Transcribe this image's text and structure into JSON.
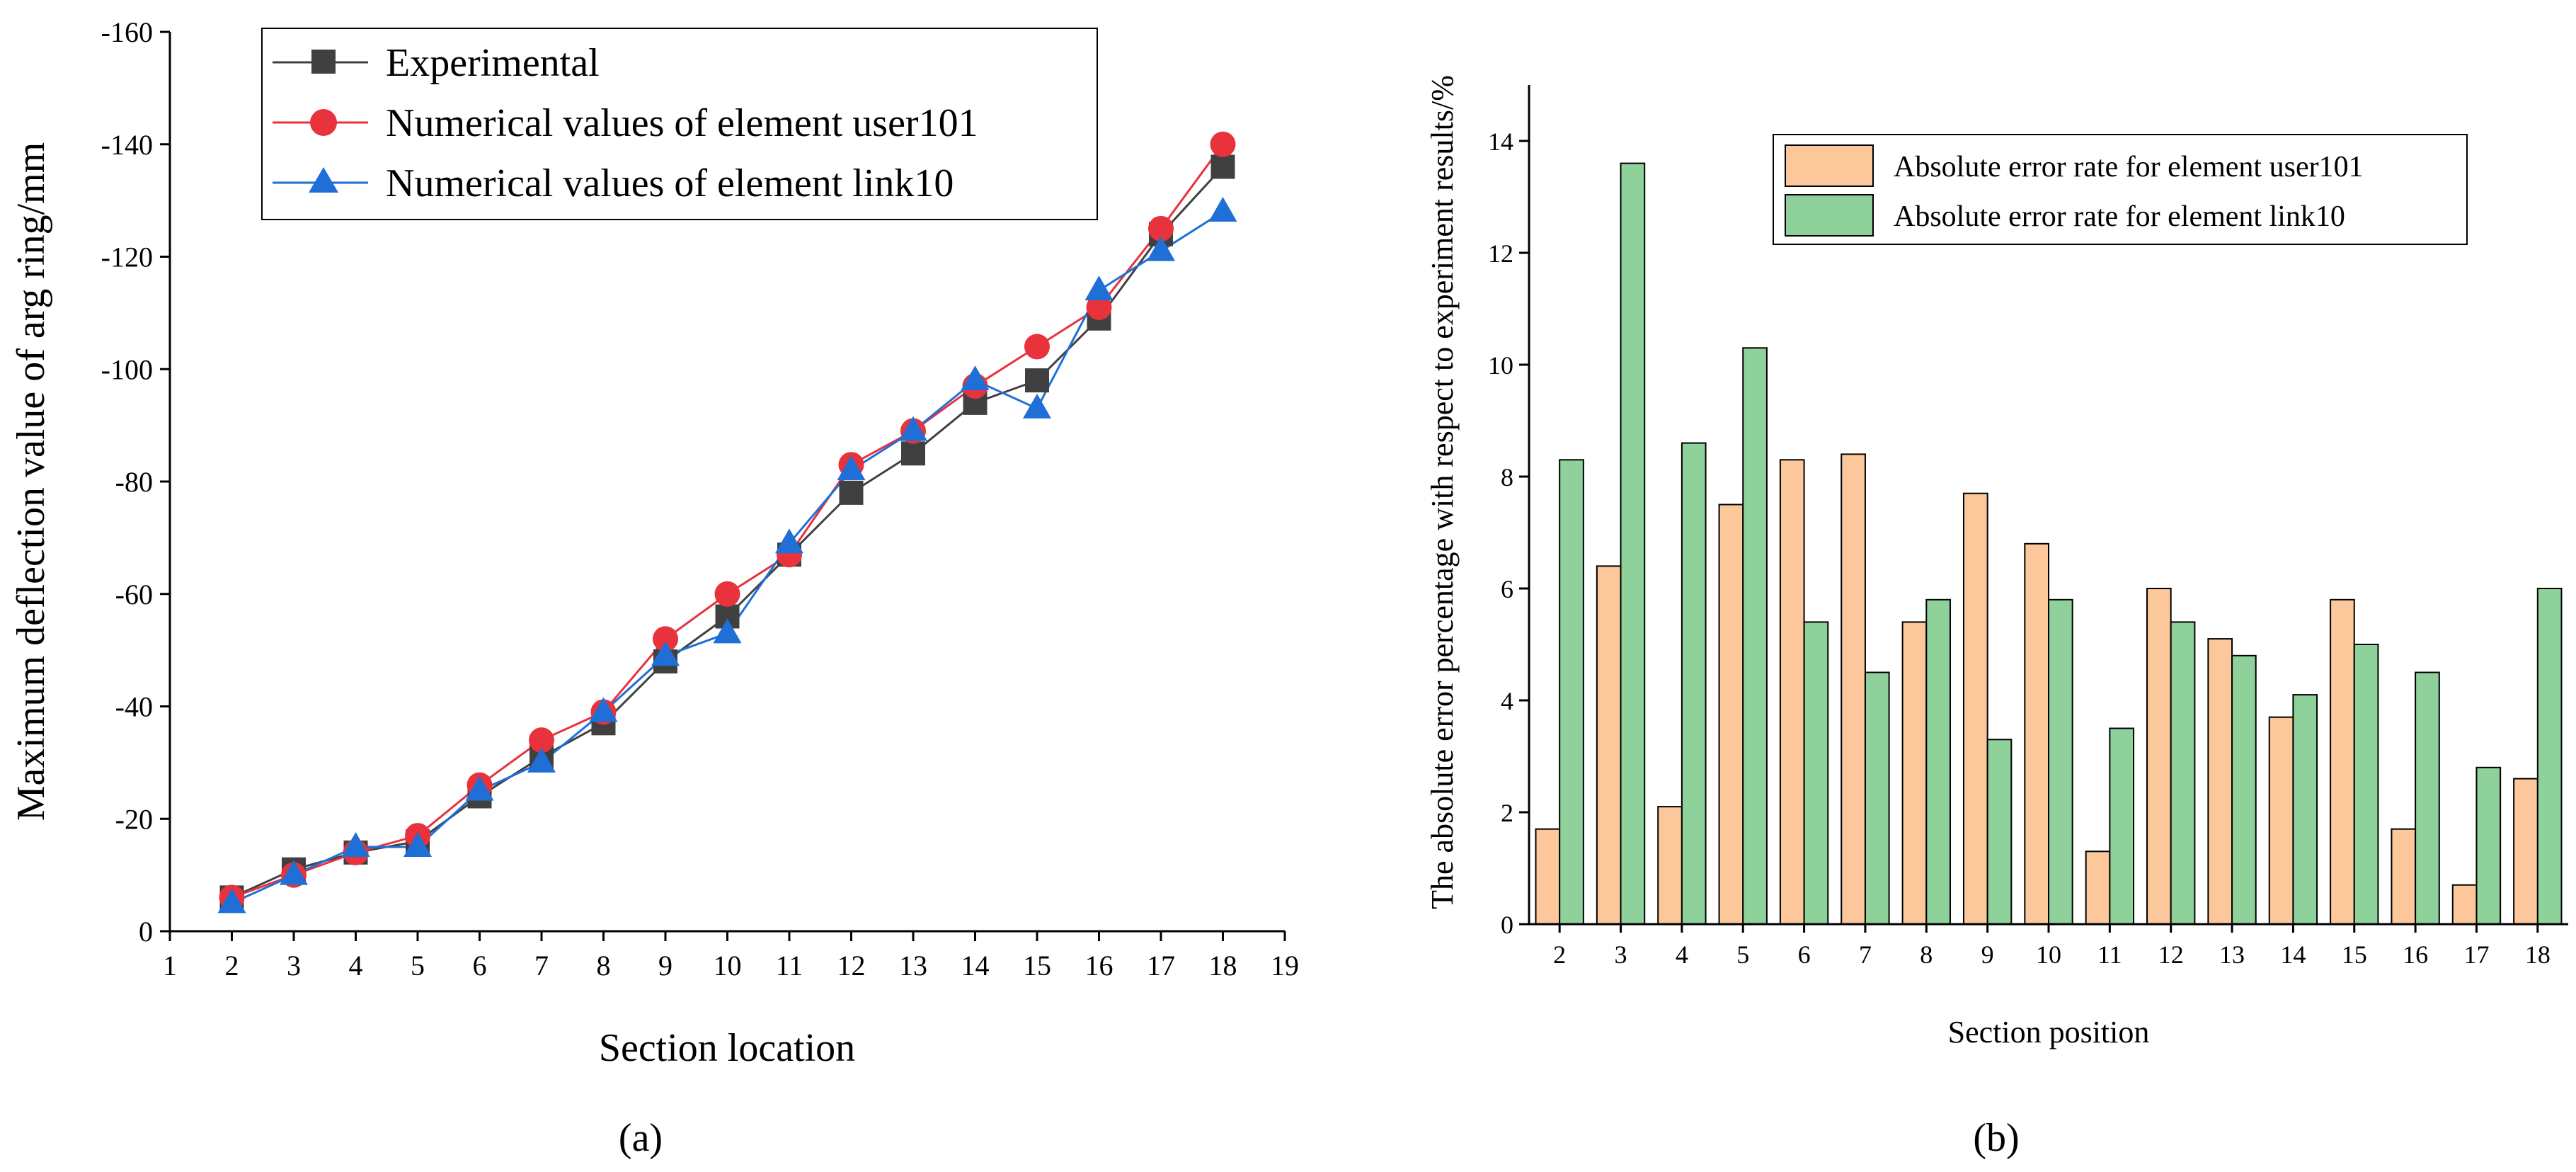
{
  "chart_data": [
    {
      "type": "line",
      "panel_label": "(a)",
      "xlabel": "Section location",
      "ylabel": "Maximum deflection value of arg ring/mm",
      "xlim": [
        1,
        19
      ],
      "ylim": [
        0,
        -160
      ],
      "y_axis_inverted": true,
      "xticks": [
        "1",
        "2",
        "3",
        "4",
        "5",
        "6",
        "7",
        "8",
        "9",
        "10",
        "11",
        "12",
        "13",
        "14",
        "15",
        "16",
        "17",
        "18",
        "19"
      ],
      "yticks": [
        "0",
        "-20",
        "-40",
        "-60",
        "-80",
        "-100",
        "-120",
        "-140",
        "-160"
      ],
      "legend_position": "top-left",
      "x": [
        2,
        3,
        4,
        5,
        6,
        7,
        8,
        9,
        10,
        11,
        12,
        13,
        14,
        15,
        16,
        17,
        18
      ],
      "series": [
        {
          "name": "Experimental",
          "color": "#404040",
          "marker": "square",
          "values": [
            -6,
            -11,
            -14,
            -16,
            -24,
            -31,
            -37,
            -48,
            -56,
            -67,
            -78,
            -85,
            -94,
            -98,
            -109,
            -124,
            -136
          ]
        },
        {
          "name": "Numerical values of element user101",
          "color": "#e8323c",
          "marker": "circle",
          "values": [
            -6,
            -10,
            -14,
            -17,
            -26,
            -34,
            -39,
            -52,
            -60,
            -67,
            -83,
            -89,
            -97,
            -104,
            -111,
            -125,
            -140
          ]
        },
        {
          "name": "Numerical values of element link10",
          "color": "#1f6fd6",
          "marker": "triangle",
          "values": [
            -5,
            -10,
            -15,
            -15,
            -25,
            -30,
            -39,
            -49,
            -53,
            -69,
            -82,
            -89,
            -98,
            -93,
            -114,
            -121,
            -128
          ]
        }
      ]
    },
    {
      "type": "bar",
      "panel_label": "(b)",
      "xlabel": "Section position",
      "ylabel": "The absolute error percentage with respect to experiment results/%",
      "ylim": [
        0,
        15
      ],
      "yticks": [
        "0",
        "2",
        "4",
        "6",
        "8",
        "10",
        "12",
        "14"
      ],
      "categories": [
        "2",
        "3",
        "4",
        "5",
        "6",
        "7",
        "8",
        "9",
        "10",
        "11",
        "12",
        "13",
        "14",
        "15",
        "16",
        "17",
        "18"
      ],
      "legend_position": "top-right",
      "series": [
        {
          "name": "Absolute error rate for element user101",
          "color": "#fcc89b",
          "values": [
            1.7,
            6.4,
            2.1,
            7.5,
            8.3,
            8.4,
            5.4,
            7.7,
            6.8,
            1.3,
            6.0,
            5.1,
            3.7,
            5.8,
            1.7,
            0.7,
            2.6
          ]
        },
        {
          "name": "Absolute error rate for element link10",
          "color": "#8fd19a",
          "values": [
            8.3,
            13.6,
            8.6,
            10.3,
            5.4,
            4.5,
            5.8,
            3.3,
            5.8,
            3.5,
            5.4,
            4.8,
            4.1,
            5.0,
            4.5,
            2.8,
            6.0
          ]
        }
      ]
    }
  ]
}
